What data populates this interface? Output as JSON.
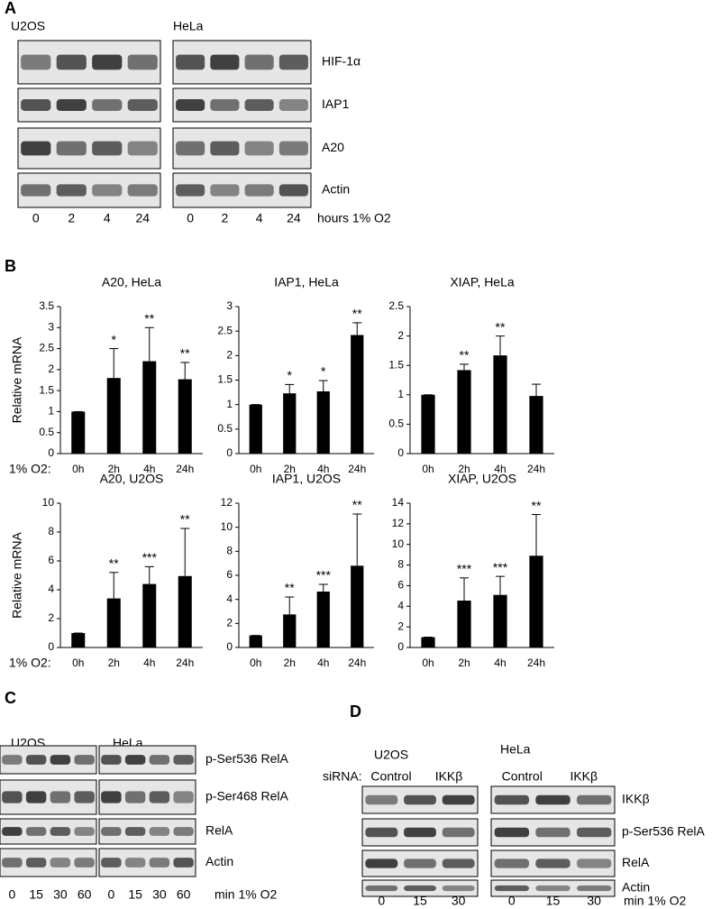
{
  "blots": [
    {
      "panel": "A",
      "cell_lines": [
        "U2OS",
        "HeLa"
      ],
      "proteins": [
        "HIF-1α",
        "IAP1",
        "A20",
        "Actin"
      ],
      "lanes": [
        "0",
        "2",
        "4",
        "24"
      ],
      "lanes_label": "hours 1% O2"
    },
    {
      "panel": "C",
      "cell_lines": [
        "U2OS",
        "HeLa"
      ],
      "proteins": [
        "p-Ser536 RelA",
        "p-Ser468 RelA",
        "RelA",
        "Actin"
      ],
      "lanes": [
        "0",
        "15",
        "30",
        "60"
      ],
      "lanes_label": "min 1% O2"
    },
    {
      "panel": "D",
      "cell_lines": [
        "U2OS",
        "HeLa"
      ],
      "sirna_label": "siRNA:",
      "groups": [
        "Control",
        "IKKβ"
      ],
      "proteins": [
        "IKKβ",
        "p-Ser536 RelA",
        "RelA",
        "Actin"
      ],
      "lanes": [
        "0",
        "15",
        "30",
        "0",
        "15",
        "30"
      ],
      "lanes_label": "min 1% O2"
    }
  ],
  "chart_panel": "B",
  "chart_data": [
    {
      "type": "bar",
      "title": "A20, HeLa",
      "ylabel": "Relative mRNA",
      "x_prefix": "1% O2:",
      "categories": [
        "0h",
        "2h",
        "4h",
        "24h"
      ],
      "values": [
        1,
        1.8,
        2.2,
        1.77
      ],
      "errors": [
        0,
        0.7,
        0.8,
        0.4
      ],
      "annotations": [
        null,
        "*",
        "**",
        "**"
      ],
      "color": "#000000",
      "ylim": [
        0,
        3.5
      ],
      "yticks": [
        0,
        0.5,
        1,
        1.5,
        2,
        2.5,
        3,
        3.5
      ]
    },
    {
      "type": "bar",
      "title": "IAP1, HeLa",
      "categories": [
        "0h",
        "2h",
        "4h",
        "24h"
      ],
      "values": [
        1,
        1.23,
        1.27,
        2.42
      ],
      "errors": [
        0,
        0.18,
        0.22,
        0.25
      ],
      "annotations": [
        null,
        "*",
        "*",
        "**"
      ],
      "color": "#000000",
      "ylim": [
        0,
        3
      ],
      "yticks": [
        0,
        0.5,
        1,
        1.5,
        2,
        2.5,
        3
      ]
    },
    {
      "type": "bar",
      "title": "XIAP, HeLa",
      "categories": [
        "0h",
        "2h",
        "4h",
        "24h"
      ],
      "values": [
        1,
        1.42,
        1.67,
        0.98
      ],
      "errors": [
        0,
        0.1,
        0.33,
        0.2
      ],
      "annotations": [
        null,
        "**",
        "**",
        null
      ],
      "color": "#000000",
      "ylim": [
        0,
        2.5
      ],
      "yticks": [
        0,
        0.5,
        1,
        1.5,
        2,
        2.5
      ]
    },
    {
      "type": "bar",
      "title": "A20, U2OS",
      "ylabel": "Relative mRNA",
      "x_prefix": "1% O2:",
      "categories": [
        "0h",
        "2h",
        "4h",
        "24h"
      ],
      "values": [
        1,
        3.4,
        4.4,
        4.95
      ],
      "errors": [
        0,
        1.8,
        1.2,
        3.3
      ],
      "annotations": [
        null,
        "**",
        "***",
        "**"
      ],
      "color": "#000000",
      "ylim": [
        0,
        10
      ],
      "yticks": [
        0,
        2,
        4,
        6,
        8,
        10
      ]
    },
    {
      "type": "bar",
      "title": "IAP1, U2OS",
      "categories": [
        "0h",
        "2h",
        "4h",
        "24h"
      ],
      "values": [
        1,
        2.75,
        4.65,
        6.8
      ],
      "errors": [
        0,
        1.45,
        0.6,
        4.3
      ],
      "annotations": [
        null,
        "**",
        "***",
        "**"
      ],
      "color": "#000000",
      "ylim": [
        0,
        12
      ],
      "yticks": [
        0,
        2,
        4,
        6,
        8,
        10,
        12
      ]
    },
    {
      "type": "bar",
      "title": "XIAP, U2OS",
      "categories": [
        "0h",
        "2h",
        "4h",
        "24h"
      ],
      "values": [
        1,
        4.55,
        5.1,
        8.9
      ],
      "errors": [
        0,
        2.2,
        1.8,
        4
      ],
      "annotations": [
        null,
        "***",
        "***",
        "**"
      ],
      "color": "#000000",
      "ylim": [
        0,
        14
      ],
      "yticks": [
        0,
        2,
        4,
        6,
        8,
        10,
        12,
        14
      ]
    }
  ]
}
